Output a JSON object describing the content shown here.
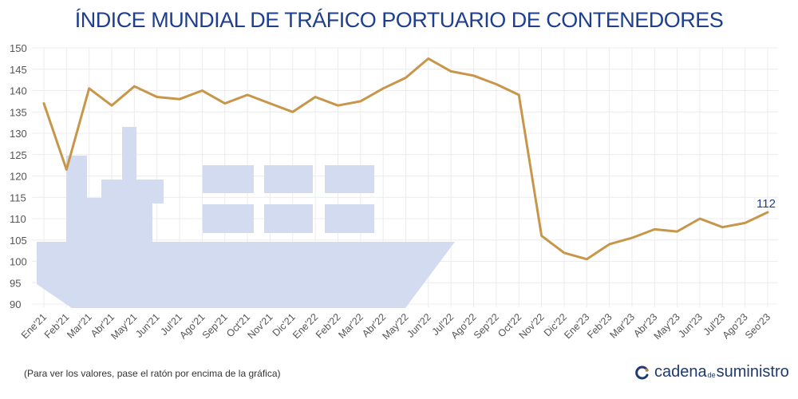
{
  "header": {
    "title": "ÍNDICE MUNDIAL DE TRÁFICO PORTUARIO DE CONTENEDORES"
  },
  "footer": {
    "note": "(Para ver los valores, pase el ratón por encima de la gráfica)",
    "brand_part1": "cadena",
    "brand_small": "de",
    "brand_part2": "suministro"
  },
  "colors": {
    "line": "#c8964a",
    "title": "#1e3f8f",
    "ship": "#d3dbf1",
    "grid": "#ececec",
    "axis_text": "#555555"
  },
  "chart_data": {
    "type": "line",
    "title": "ÍNDICE MUNDIAL DE TRÁFICO PORTUARIO DE CONTENEDORES",
    "xlabel": "",
    "ylabel": "",
    "ylim": [
      90,
      150
    ],
    "y_ticks": [
      90,
      95,
      100,
      105,
      110,
      115,
      120,
      125,
      130,
      135,
      140,
      145,
      150
    ],
    "grid": true,
    "legend": "none",
    "categories": [
      "Ene'21",
      "Feb'21",
      "Mar'21",
      "Abr'21",
      "May'21",
      "Jun'21",
      "Jul'21",
      "Ago'21",
      "Sep'21",
      "Oct'21",
      "Nov'21",
      "Dic'21",
      "Ene'22",
      "Feb'22",
      "Mar'22",
      "Abr'22",
      "May'22",
      "Jun'22",
      "Jul'22",
      "Ago'22",
      "Sep'22",
      "Oct'22",
      "Nov'22",
      "Dic'22",
      "Ene'23",
      "Feb'23",
      "Mar'23",
      "Abr'23",
      "May'23",
      "Jun'23",
      "Jul'23",
      "Ago'23",
      "Sep'23"
    ],
    "tick_labels": [
      "Ene'21",
      "Feb'21",
      "Mar'21",
      "Abr'21",
      "May'21",
      "Jun'21",
      "Jul'21",
      "Ago'21",
      "Sep'21",
      "Oct'21",
      "Nov'21",
      "Dic'21",
      "Ene'22",
      "Feb'22",
      "Mar'22",
      "Abr'22",
      "May'22",
      "Jun'22",
      "Jul'22",
      "Ago'22",
      "Sep'22",
      "Oct'22",
      "Nov'22",
      "Dic'22",
      "Ene'23",
      "Feb'23",
      "Mar'23",
      "Abr'23",
      "May'23",
      "Jun'23",
      "Jul'23",
      "Ago'23",
      "Seo'23"
    ],
    "values": [
      137,
      121.5,
      140.5,
      136.5,
      141,
      138.5,
      138,
      140,
      137,
      139,
      137,
      135,
      138.5,
      136.5,
      137.5,
      140.5,
      143,
      147.5,
      144.5,
      143.5,
      141.5,
      139,
      106,
      102,
      100.5,
      104,
      105.5,
      107.5,
      107,
      110,
      108,
      109,
      111.5
    ],
    "annotation": {
      "index": 32,
      "text": "112"
    }
  }
}
